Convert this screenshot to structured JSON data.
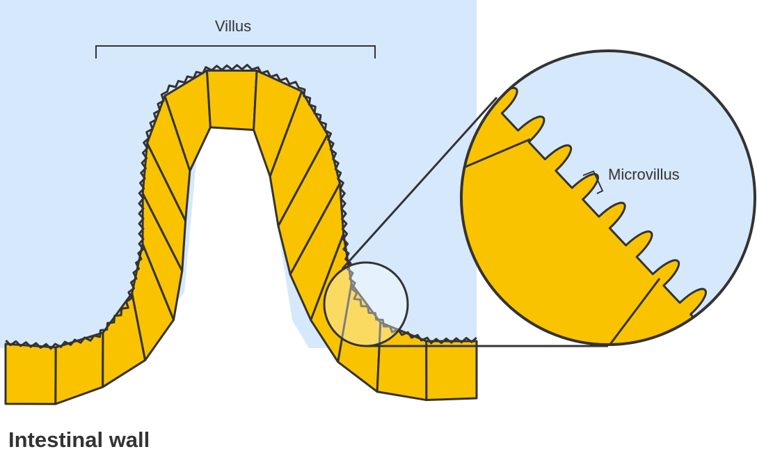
{
  "labels": {
    "villus": "Villus",
    "microvillus": "Microvillus",
    "caption": "Intestinal wall"
  },
  "colors": {
    "lumen": "#D6E8FC",
    "cell": "#F9C300",
    "outline": "#333333",
    "background": "#FFFFFF"
  }
}
